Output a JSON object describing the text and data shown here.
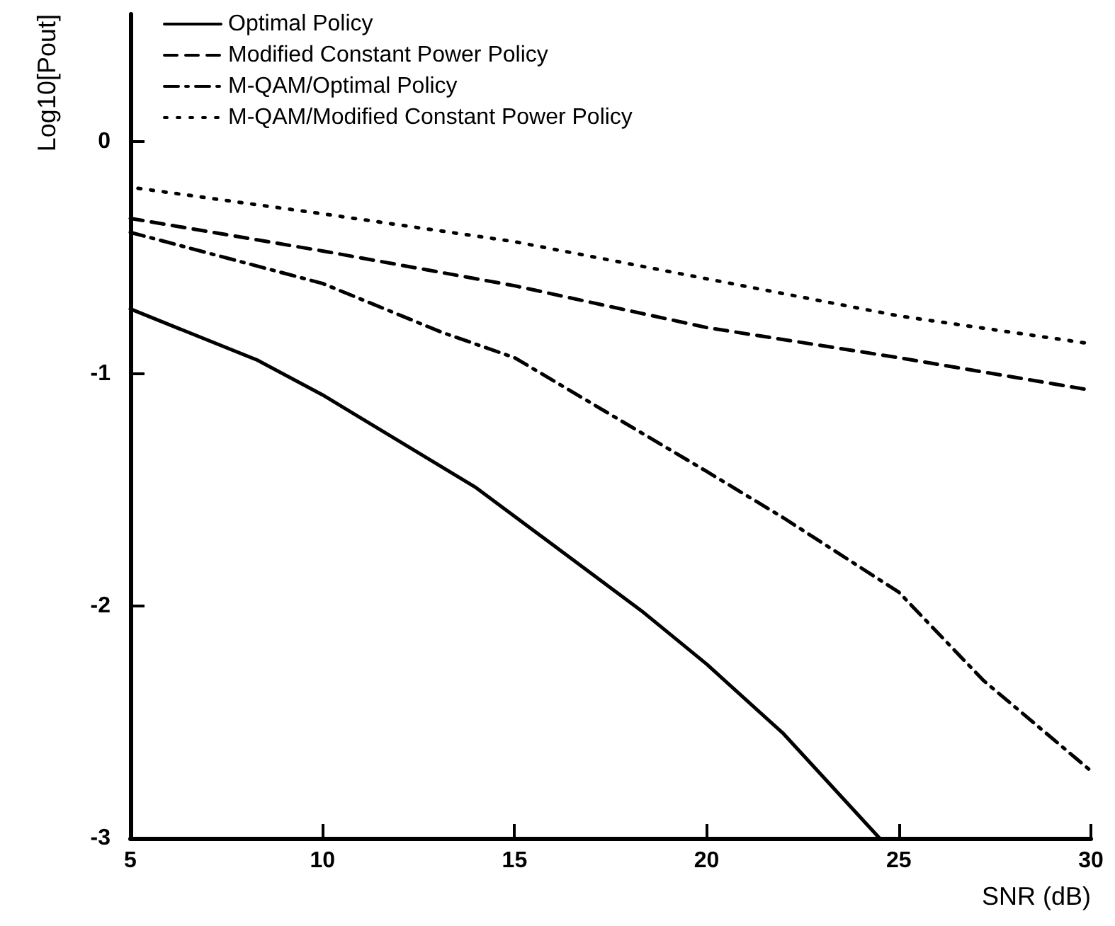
{
  "chart_data": {
    "type": "line",
    "xlabel": "SNR (dB)",
    "ylabel": "Log10[Pout]",
    "xlim": [
      5,
      30
    ],
    "xticks": [
      5,
      10,
      15,
      20,
      25,
      30
    ],
    "ylim": [
      -3,
      0.55
    ],
    "yticks": [
      -3,
      -2,
      -1,
      0
    ],
    "grid": false,
    "legend": "top",
    "marker": "none",
    "series": [
      {
        "name": "Optimal Policy",
        "color": "#000000",
        "line_style": "solid",
        "x": [
          5,
          8.3,
          10,
          14,
          18.3,
          20,
          22,
          24.5
        ],
        "values": [
          -0.72,
          -0.94,
          -1.09,
          -1.49,
          -2.02,
          -2.25,
          -2.55,
          -3
        ]
      },
      {
        "name": "Modified Constant Power Policy",
        "color": "#000000",
        "line_style": "dashed",
        "x": [
          5,
          10,
          15,
          20,
          25,
          30
        ],
        "values": [
          -0.33,
          -0.47,
          -0.62,
          -0.8,
          -0.93,
          -1.07
        ]
      },
      {
        "name": "M-QAM/Optimal Policy",
        "color": "#000000",
        "line_style": "dashdot",
        "x": [
          5,
          10,
          13.1,
          15,
          20,
          22,
          25,
          27.2,
          30
        ],
        "values": [
          -0.39,
          -0.61,
          -0.82,
          -0.93,
          -1.42,
          -1.62,
          -1.94,
          -2.32,
          -2.71
        ]
      },
      {
        "name": "M-QAM/Modified Constant Power Policy",
        "color": "#000000",
        "line_style": "dotted",
        "x": [
          5.2,
          10,
          15,
          20,
          25,
          30
        ],
        "values": [
          -0.2,
          -0.31,
          -0.43,
          -0.59,
          -0.75,
          -0.87
        ]
      }
    ]
  }
}
